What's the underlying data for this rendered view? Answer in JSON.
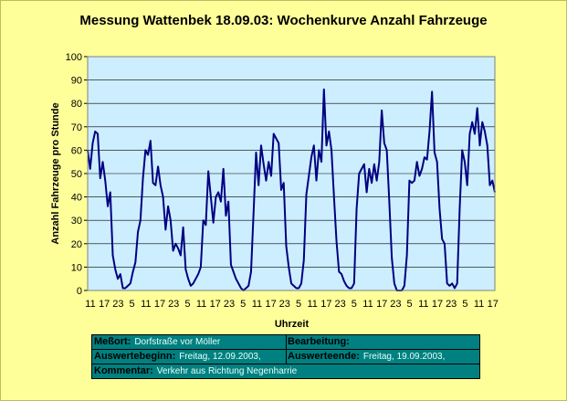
{
  "chart_data": {
    "type": "line",
    "title": "Messung Wattenbek 18.09.03: Wochenkurve Anzahl Fahrzeuge",
    "xlabel": "Uhrzeit",
    "ylabel": "Anzahl Fahrzeuge pro Stunde",
    "ylim": [
      0,
      100
    ],
    "yticks": [
      "0",
      "10",
      "20",
      "30",
      "40",
      "50",
      "60",
      "70",
      "80",
      "90",
      "100"
    ],
    "xtick_labels": [
      "11",
      "17",
      "23",
      "5",
      "11",
      "17",
      "23",
      "5",
      "11",
      "17",
      "23",
      "5",
      "11",
      "17",
      "23",
      "5",
      "11",
      "17",
      "23",
      "5",
      "11",
      "17",
      "23",
      "5",
      "11",
      "17",
      "23",
      "5",
      "11",
      "17"
    ],
    "grid": "horizontal",
    "line_color": "#000080",
    "plot_background": "#cceeff",
    "series": [
      {
        "values": [
          60,
          52,
          63,
          68,
          67,
          48,
          55,
          47,
          36,
          42,
          15,
          9,
          5,
          7,
          1,
          1,
          2,
          3,
          8,
          12,
          25,
          30,
          48,
          60,
          58,
          64,
          46,
          45,
          53,
          45,
          40,
          26,
          36,
          30,
          17,
          20,
          18,
          15,
          27,
          9,
          5,
          2,
          3,
          5,
          7,
          10,
          30,
          28,
          51,
          40,
          29,
          40,
          42,
          38,
          52,
          32,
          38,
          11,
          8,
          5,
          3,
          1,
          0,
          1,
          2,
          8,
          33,
          59,
          45,
          62,
          54,
          47,
          55,
          49,
          67,
          65,
          63,
          43,
          46,
          19,
          10,
          3,
          2,
          1,
          1,
          3,
          13,
          41,
          49,
          57,
          62,
          47,
          60,
          55,
          86,
          62,
          68,
          60,
          40,
          21,
          8,
          7,
          4,
          2,
          1,
          1,
          3,
          35,
          50,
          52,
          54,
          42,
          52,
          46,
          54,
          47,
          55,
          77,
          63,
          60,
          38,
          14,
          3,
          0,
          0,
          0,
          2,
          15,
          47,
          46,
          47,
          55,
          49,
          52,
          57,
          56,
          68,
          85,
          59,
          55,
          35,
          22,
          20,
          3,
          2,
          3,
          1,
          3,
          35,
          60,
          55,
          45,
          67,
          72,
          67,
          78,
          62,
          72,
          68,
          62,
          45,
          47,
          42
        ]
      }
    ]
  },
  "info_box": {
    "messort_label": "Meßort:",
    "messort_value": "Dorfstraße vor Möller",
    "bearbeitung_label": "Bearbeitung:",
    "beginn_label": "Auswertebeginn:",
    "beginn_value": "Freitag, 12.09.2003,",
    "ende_label": "Auswerteende:",
    "ende_value": "Freitag, 19.09.2003,",
    "kommentar_label": "Kommentar:",
    "kommentar_value": "Verkehr aus Richtung Negenharrie"
  }
}
